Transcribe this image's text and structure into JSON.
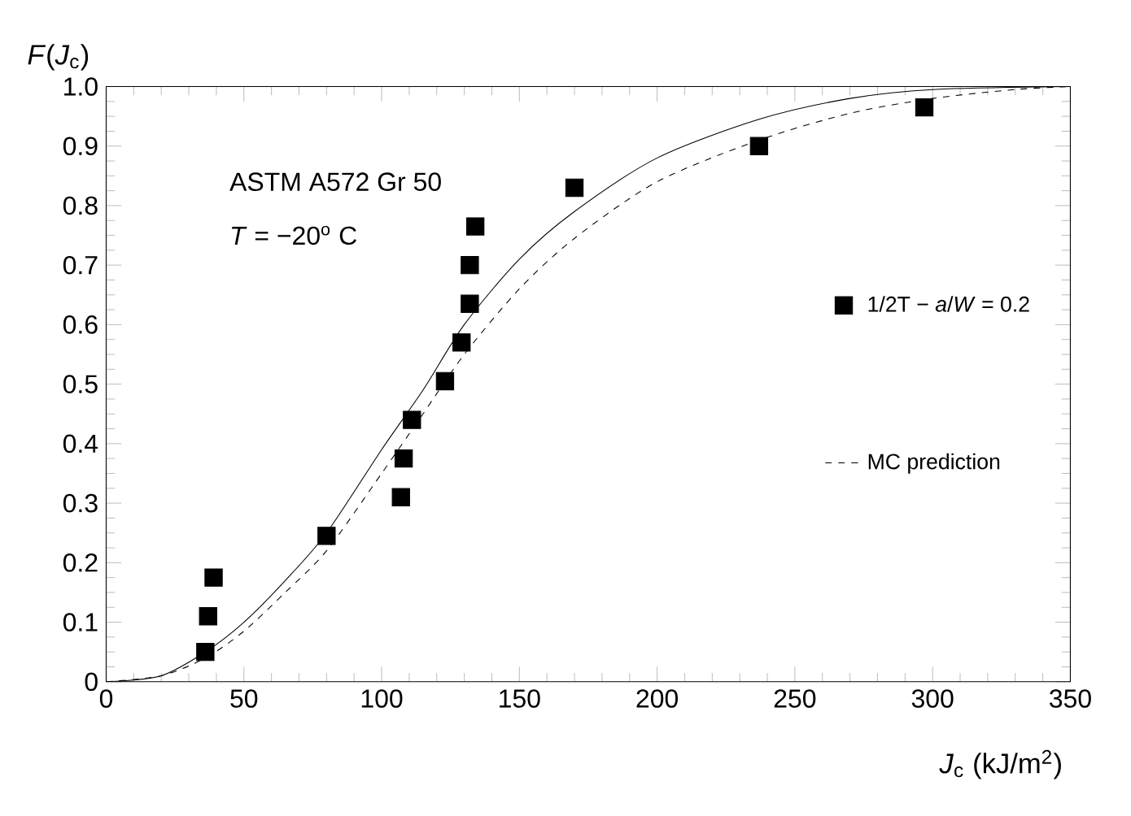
{
  "chart_data": {
    "type": "line",
    "xlabel": "*J*$_{c}$ (kJ/m$^{2}$)",
    "ylabel": "*F*(*J*$_{c}$)",
    "annotations": [
      "ASTM A572 Gr 50",
      "*T* = −20$^{o}$ C"
    ],
    "xlim": [
      0,
      350
    ],
    "ylim": [
      0,
      1.0
    ],
    "xticks": [
      0,
      50,
      100,
      150,
      200,
      250,
      300,
      350
    ],
    "yticks": [
      0,
      0.1,
      0.2,
      0.3,
      0.4,
      0.5,
      0.6,
      0.7,
      0.8,
      0.9,
      {
        "value": 1,
        "label": "1.0"
      }
    ],
    "grid": false,
    "legend": "right",
    "series": [
      {
        "name": "1/2T − *a*/*W* = 0.2",
        "type": "scatter",
        "marker": "square",
        "color": "#000000",
        "x": [
          36,
          37,
          39,
          80,
          107,
          108,
          111,
          123,
          129,
          132,
          132,
          134,
          170,
          237,
          297
        ],
        "values": [
          0.05,
          0.11,
          0.175,
          0.245,
          0.31,
          0.375,
          0.44,
          0.505,
          0.57,
          0.635,
          0.7,
          0.765,
          0.83,
          0.9,
          0.965
        ]
      },
      {
        "line_style": "solid",
        "color": "#000000",
        "x": [
          0,
          20,
          36,
          50,
          65,
          80,
          100,
          115,
          130,
          150,
          170,
          200,
          237,
          270,
          300,
          350
        ],
        "values": [
          0,
          0.01,
          0.05,
          0.1,
          0.17,
          0.25,
          0.39,
          0.49,
          0.6,
          0.71,
          0.79,
          0.88,
          0.945,
          0.98,
          0.995,
          1.0
        ]
      },
      {
        "name": "MC prediction",
        "line_style": "dashed",
        "color": "#000000",
        "x": [
          0,
          20,
          36,
          50,
          65,
          80,
          100,
          115,
          130,
          150,
          170,
          200,
          237,
          270,
          300,
          330,
          350
        ],
        "values": [
          0,
          0.01,
          0.04,
          0.085,
          0.15,
          0.22,
          0.35,
          0.45,
          0.55,
          0.66,
          0.745,
          0.84,
          0.91,
          0.955,
          0.98,
          0.995,
          1.0
        ]
      }
    ]
  }
}
